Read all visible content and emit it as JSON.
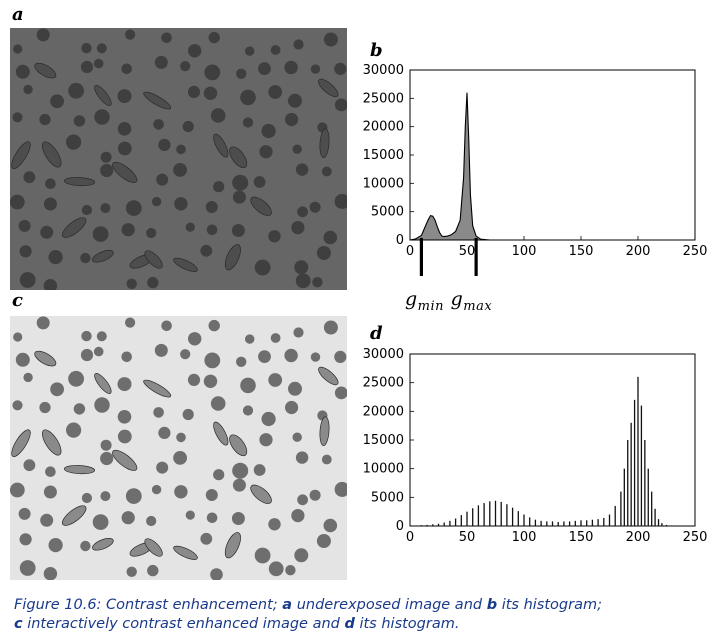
{
  "panels": {
    "a": "a",
    "b": "b",
    "c": "c",
    "d": "d"
  },
  "photos": {
    "a": {
      "background": "#666666",
      "disc": "#3f3f3f",
      "seed": "#4d4d4d"
    },
    "c": {
      "background": "#e4e4e4",
      "disc": "#6e6e6e",
      "seed": "#8a8a8a"
    }
  },
  "gmin_gmax": {
    "g1": "g",
    "sub1": "min",
    "g2": "g",
    "sub2": "max"
  },
  "chart_data": [
    {
      "type": "area",
      "panel": "b",
      "xlim": [
        0,
        250
      ],
      "ylim": [
        0,
        30000
      ],
      "xticks": [
        "0",
        "50",
        "100",
        "150",
        "200",
        "250"
      ],
      "yticks": [
        "0",
        "5000",
        "10000",
        "15000",
        "20000",
        "25000",
        "30000"
      ],
      "x": [
        0,
        5,
        10,
        13,
        16,
        18,
        20,
        22,
        24,
        26,
        28,
        30,
        33,
        36,
        40,
        44,
        47,
        48.5,
        50,
        51.5,
        53,
        55,
        58,
        62,
        70
      ],
      "y": [
        0,
        200,
        800,
        2200,
        3600,
        4300,
        4200,
        3500,
        2300,
        1300,
        700,
        600,
        700,
        900,
        1500,
        3500,
        11000,
        20000,
        26000,
        18000,
        8000,
        2500,
        700,
        150,
        0
      ],
      "markers": [
        {
          "x": 10,
          "name": "g_min"
        },
        {
          "x": 58,
          "name": "g_max"
        }
      ],
      "grid": false
    },
    {
      "type": "bar",
      "panel": "d",
      "xlim": [
        0,
        250
      ],
      "ylim": [
        0,
        30000
      ],
      "xticks": [
        "0",
        "50",
        "100",
        "150",
        "200",
        "250"
      ],
      "yticks": [
        "0",
        "5000",
        "10000",
        "15000",
        "20000",
        "25000",
        "30000"
      ],
      "x": [
        5,
        10,
        15,
        20,
        25,
        30,
        35,
        40,
        45,
        50,
        55,
        60,
        65,
        70,
        75,
        80,
        85,
        90,
        95,
        100,
        105,
        110,
        115,
        120,
        125,
        130,
        135,
        140,
        145,
        150,
        155,
        160,
        165,
        170,
        175,
        180,
        185,
        188,
        191,
        194,
        197,
        200,
        203,
        206,
        209,
        212,
        215,
        218,
        221,
        225,
        230,
        235
      ],
      "y": [
        100,
        150,
        200,
        300,
        400,
        600,
        900,
        1300,
        1900,
        2500,
        3100,
        3600,
        4000,
        4300,
        4400,
        4200,
        3800,
        3200,
        2600,
        2000,
        1500,
        1100,
        900,
        800,
        800,
        700,
        800,
        800,
        900,
        1000,
        1000,
        1100,
        1200,
        1400,
        2000,
        3500,
        6000,
        10000,
        15000,
        18000,
        22000,
        26000,
        21000,
        15000,
        10000,
        6000,
        3000,
        1200,
        500,
        200,
        100,
        50
      ],
      "grid": false
    }
  ],
  "caption": {
    "line1_pre": "Figure 10.6: Contrast enhancement; ",
    "line1_a": "a",
    "line1_mid": " underexposed image and ",
    "line1_b": "b",
    "line1_post": " its histogram;",
    "line2_c": "c",
    "line2_mid": " interactively contrast enhanced image and ",
    "line2_d": "d",
    "line2_post": " its histogram."
  }
}
